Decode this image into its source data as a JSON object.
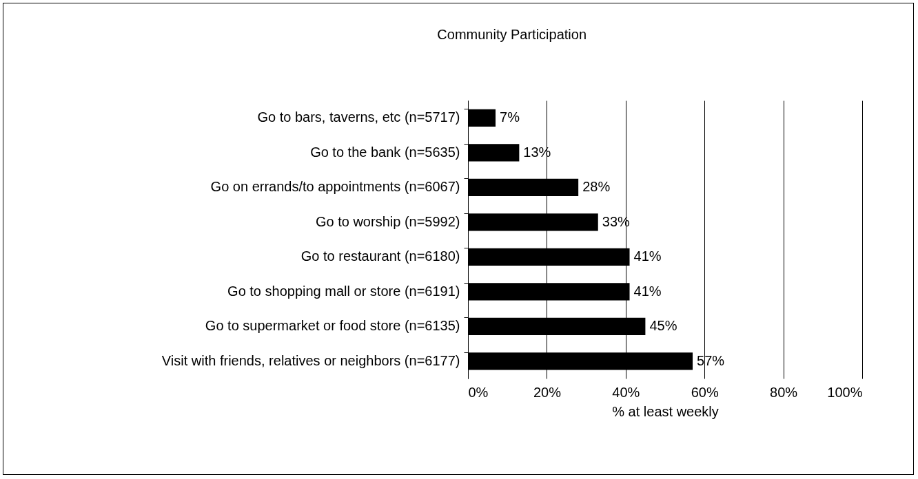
{
  "chart_data": {
    "type": "bar",
    "orientation": "horizontal",
    "title": "Community Participation",
    "xlabel": "% at least weekly",
    "categories": [
      "Go to bars, taverns, etc (n=5717)",
      "Go to the bank (n=5635)",
      "Go on errands/to appointments (n=6067)",
      "Go to worship (n=5992)",
      "Go to restaurant (n=6180)",
      "Go to shopping mall or store (n=6191)",
      "Go to supermarket or food store (n=6135)",
      "Visit with friends, relatives or neighbors (n=6177)"
    ],
    "values": [
      7,
      13,
      28,
      33,
      41,
      41,
      45,
      57
    ],
    "value_labels": [
      "7%",
      "13%",
      "28%",
      "33%",
      "41%",
      "41%",
      "45%",
      "57%"
    ],
    "color": "#000000",
    "xlim": [
      0,
      100
    ],
    "xticks": [
      {
        "value": 0,
        "label": "0%"
      },
      {
        "value": 20,
        "label": "20%"
      },
      {
        "value": 40,
        "label": "40%"
      },
      {
        "value": 60,
        "label": "60%"
      },
      {
        "value": 80,
        "label": "80%"
      },
      {
        "value": 100,
        "label": "100%"
      }
    ],
    "grid": "x"
  }
}
